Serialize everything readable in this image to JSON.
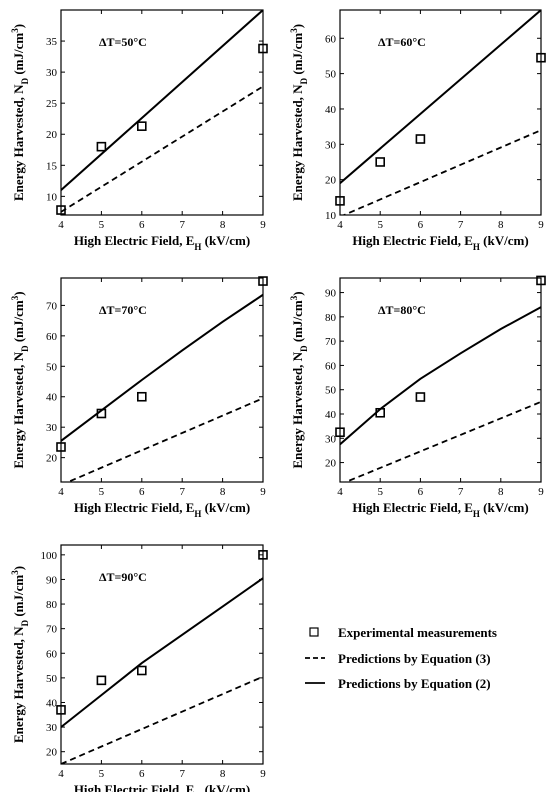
{
  "chart_data": [
    {
      "type": "line",
      "annotation": "ΔT=50°C",
      "xlabel": "High Electric Field, E_H (kV/cm)",
      "ylabel": "Energy Harvested, N_D (mJ/cm^3)",
      "xlim": [
        4,
        9
      ],
      "ylim": [
        7,
        40
      ],
      "xticks": [
        4,
        5,
        6,
        7,
        8,
        9
      ],
      "yticks": [
        10,
        15,
        20,
        25,
        30,
        35
      ],
      "experimental": {
        "x": [
          4,
          5,
          6,
          9
        ],
        "y": [
          7.8,
          18,
          21.3,
          33.8
        ]
      },
      "equation2": {
        "x": [
          4,
          9
        ],
        "y": [
          11,
          40
        ]
      },
      "equation3": {
        "x": [
          4,
          9
        ],
        "y": [
          7.5,
          27.7
        ]
      }
    },
    {
      "type": "line",
      "annotation": "ΔT=60°C",
      "xlabel": "High Electric Field, E_H (kV/cm)",
      "ylabel": "Energy Harvested, N_D (mJ/cm^3)",
      "xlim": [
        4,
        9
      ],
      "ylim": [
        10,
        68
      ],
      "xticks": [
        4,
        5,
        6,
        7,
        8,
        9
      ],
      "yticks": [
        10,
        20,
        30,
        40,
        50,
        60
      ],
      "experimental": {
        "x": [
          4,
          5,
          6,
          9
        ],
        "y": [
          14,
          25,
          31.5,
          54.5
        ]
      },
      "equation2": {
        "x": [
          4,
          9
        ],
        "y": [
          19,
          68
        ]
      },
      "equation3": {
        "x": [
          4,
          9
        ],
        "y": [
          9.5,
          34
        ]
      }
    },
    {
      "type": "line",
      "annotation": "ΔT=70°C",
      "xlabel": "High Electric Field, E_H (kV/cm)",
      "ylabel": "Energy Harvested, N_D (mJ/cm^3)",
      "xlim": [
        4,
        9
      ],
      "ylim": [
        12,
        79
      ],
      "xticks": [
        4,
        5,
        6,
        7,
        8,
        9
      ],
      "yticks": [
        20,
        30,
        40,
        50,
        60,
        70
      ],
      "experimental": {
        "x": [
          4,
          5,
          6,
          9
        ],
        "y": [
          23.5,
          34.5,
          40,
          78
        ]
      },
      "equation2": {
        "x": [
          4,
          5,
          6,
          7,
          8,
          9
        ],
        "y": [
          25.5,
          35.5,
          45.5,
          55.2,
          64.6,
          73.5
        ]
      },
      "equation3": {
        "x": [
          4,
          9
        ],
        "y": [
          11,
          39.5
        ]
      }
    },
    {
      "type": "line",
      "annotation": "ΔT=80°C",
      "xlabel": "High Electric Field, E_H (kV/cm)",
      "ylabel": "Energy Harvested, N_D (mJ/cm^3)",
      "xlim": [
        4,
        9
      ],
      "ylim": [
        12,
        96
      ],
      "xticks": [
        4,
        5,
        6,
        7,
        8,
        9
      ],
      "yticks": [
        20,
        30,
        40,
        50,
        60,
        70,
        80,
        90
      ],
      "experimental": {
        "x": [
          4,
          5,
          6,
          9
        ],
        "y": [
          32.5,
          40.5,
          47,
          95
        ]
      },
      "equation2": {
        "x": [
          4,
          5,
          6,
          7,
          8,
          9
        ],
        "y": [
          27.5,
          42,
          54.5,
          65,
          75,
          84
        ]
      },
      "equation3": {
        "x": [
          4,
          9
        ],
        "y": [
          11,
          45
        ]
      }
    },
    {
      "type": "line",
      "annotation": "ΔT=90°C",
      "xlabel": "High Electric Field, E_H (kV/cm)",
      "ylabel": "Energy Harvested, N_D (mJ/cm^3)",
      "xlim": [
        4,
        9
      ],
      "ylim": [
        15,
        104
      ],
      "xticks": [
        4,
        5,
        6,
        7,
        8,
        9
      ],
      "yticks": [
        20,
        30,
        40,
        50,
        60,
        70,
        80,
        90,
        100
      ],
      "experimental": {
        "x": [
          4,
          5,
          6,
          9
        ],
        "y": [
          37,
          49,
          53,
          100
        ]
      },
      "equation2": {
        "x": [
          4,
          5,
          6,
          7,
          8,
          9
        ],
        "y": [
          30,
          43,
          56,
          67.5,
          79,
          90.5
        ]
      },
      "equation3": {
        "x": [
          4,
          9
        ],
        "y": [
          15,
          50.5
        ]
      }
    }
  ],
  "legend": {
    "placement": "bottom-right",
    "experimental": "Experimental measurements",
    "equation3": "Predictions by Equation (3)",
    "equation2": "Predictions by Equation (2)"
  }
}
